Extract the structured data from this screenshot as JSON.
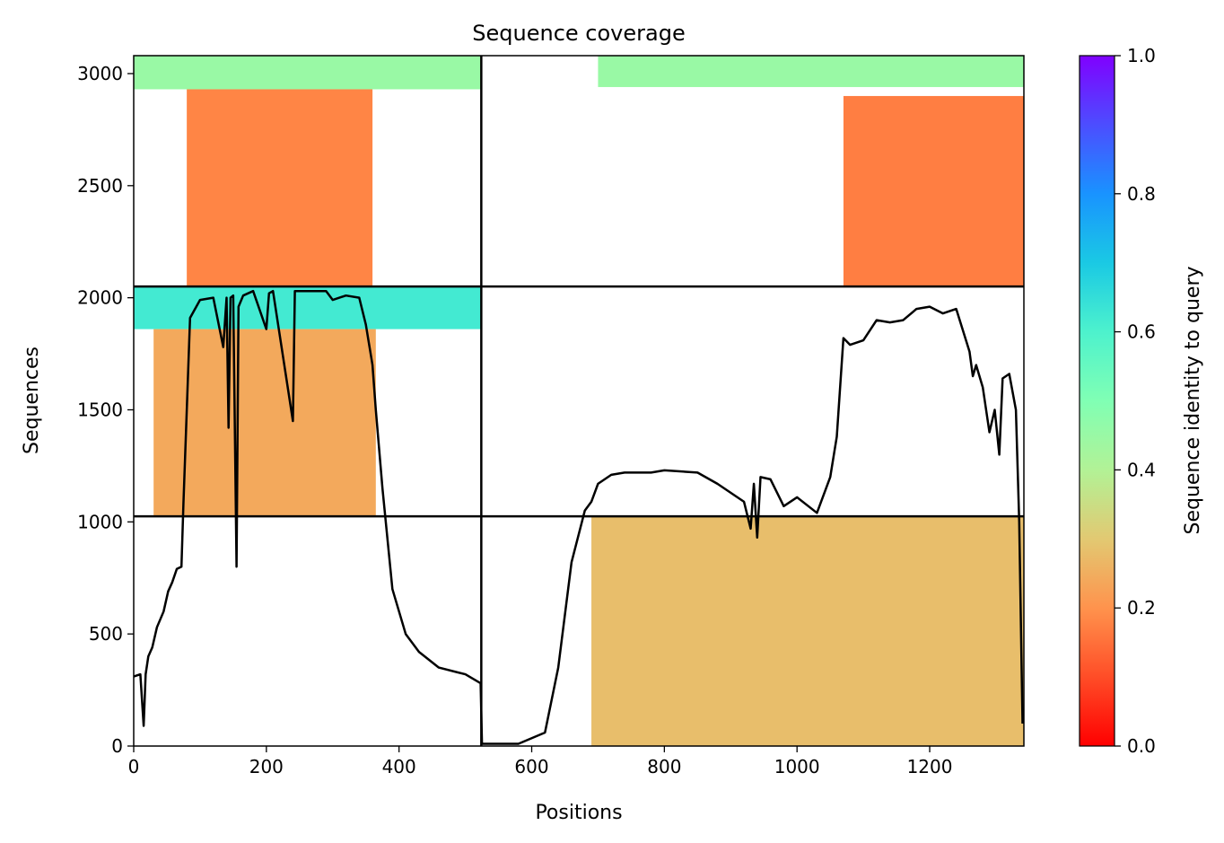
{
  "chart_data": {
    "type": "heatmap",
    "title": "Sequence coverage",
    "xlabel": "Positions",
    "ylabel": "Sequences",
    "xlim": [
      0,
      1342
    ],
    "ylim": [
      0,
      3080
    ],
    "xticks": [
      0,
      200,
      400,
      600,
      800,
      1000,
      1200
    ],
    "yticks": [
      0,
      500,
      1000,
      1500,
      2000,
      2500,
      3000
    ],
    "grid": false,
    "colormap": "rainbow_r",
    "colorbar": {
      "label": "Sequence identity to query",
      "range": [
        0,
        1
      ],
      "ticks": [
        "0.0",
        "0.2",
        "0.4",
        "0.6",
        "0.8",
        "1.0"
      ]
    },
    "dividers": {
      "x": [
        524
      ],
      "y": [
        1025,
        2050
      ]
    },
    "blocks": [
      {
        "name": "upper-left",
        "x": [
          0,
          524
        ],
        "y": [
          2050,
          3080
        ],
        "bands": [
          {
            "x": [
              0,
              524
            ],
            "y": [
              2930,
              3080
            ],
            "identity": 0.45
          },
          {
            "x": [
              80,
              360
            ],
            "y": [
              2050,
              2930
            ],
            "identity": 0.18
          }
        ]
      },
      {
        "name": "upper-right",
        "x": [
          524,
          1342
        ],
        "y": [
          2050,
          3080
        ],
        "bands": [
          {
            "x": [
              700,
              1342
            ],
            "y": [
              2940,
              3080
            ],
            "identity": 0.45
          },
          {
            "x": [
              1070,
              1342
            ],
            "y": [
              2050,
              2900
            ],
            "identity": 0.17
          }
        ]
      },
      {
        "name": "middle-left",
        "x": [
          0,
          524
        ],
        "y": [
          1025,
          2050
        ],
        "bands": [
          {
            "x": [
              0,
              524
            ],
            "y": [
              1860,
              2050
            ],
            "identity": 0.62
          },
          {
            "x": [
              30,
              365
            ],
            "y": [
              1025,
              1860
            ],
            "identity": 0.24
          }
        ]
      },
      {
        "name": "lower-right",
        "x": [
          524,
          1342
        ],
        "y": [
          0,
          1025
        ],
        "bands": [
          {
            "x": [
              690,
              1342
            ],
            "y": [
              0,
              1025
            ],
            "identity": 0.28
          }
        ]
      }
    ],
    "series": [
      {
        "type": "line",
        "color": "#000000",
        "x": [
          0,
          10,
          15,
          18,
          22,
          28,
          35,
          45,
          52,
          58,
          65,
          72,
          75,
          85,
          100,
          120,
          135,
          140,
          143,
          146,
          150,
          155,
          158,
          165,
          180,
          200,
          204,
          210,
          240,
          243,
          260,
          290,
          300,
          320,
          340,
          350,
          360,
          365,
          375,
          390,
          410,
          430,
          460,
          500,
          523,
          525,
          580,
          620,
          640,
          660,
          680,
          690,
          700,
          720,
          740,
          780,
          800,
          850,
          880,
          920,
          930,
          935,
          940,
          945,
          960,
          980,
          1000,
          1030,
          1050,
          1060,
          1070,
          1080,
          1100,
          1120,
          1140,
          1160,
          1180,
          1200,
          1220,
          1240,
          1260,
          1265,
          1270,
          1280,
          1290,
          1298,
          1305,
          1310,
          1320,
          1330,
          1335,
          1340
        ],
        "y": [
          310,
          320,
          90,
          320,
          400,
          440,
          530,
          600,
          690,
          730,
          790,
          800,
          1080,
          1910,
          1990,
          2000,
          1780,
          2000,
          1420,
          2000,
          2010,
          800,
          1960,
          2010,
          2030,
          1860,
          2020,
          2030,
          1450,
          2030,
          2030,
          2030,
          1990,
          2010,
          2000,
          1880,
          1700,
          1500,
          1150,
          700,
          500,
          420,
          350,
          320,
          280,
          10,
          10,
          60,
          350,
          820,
          1050,
          1090,
          1170,
          1210,
          1220,
          1220,
          1230,
          1220,
          1170,
          1090,
          970,
          1170,
          930,
          1200,
          1190,
          1070,
          1110,
          1040,
          1200,
          1380,
          1820,
          1790,
          1810,
          1900,
          1890,
          1900,
          1950,
          1960,
          1930,
          1950,
          1760,
          1650,
          1700,
          1600,
          1400,
          1500,
          1300,
          1640,
          1660,
          1500,
          1000,
          100
        ]
      }
    ]
  }
}
